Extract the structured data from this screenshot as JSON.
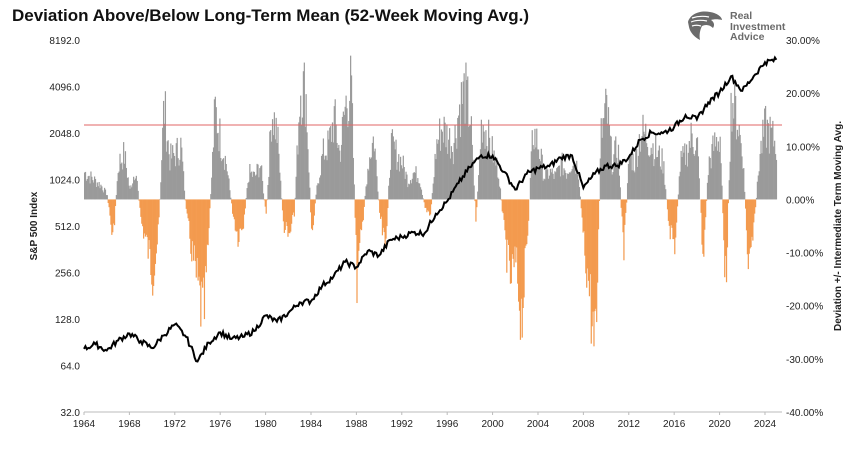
{
  "title": "Deviation Above/Below Long-Term Mean (52-Week Moving Avg.)",
  "brand": {
    "lines": [
      "Real",
      "Investment",
      "Advice"
    ],
    "logo_icon": "eagle-head-icon"
  },
  "chart_data": {
    "type": "line+bar",
    "title": "Deviation Above/Below Long-Term Mean (52-Week Moving Avg.)",
    "xlabel": "",
    "x_ticks": [
      "1964",
      "1968",
      "1972",
      "1976",
      "1980",
      "1984",
      "1988",
      "1992",
      "1996",
      "2000",
      "2004",
      "2008",
      "2012",
      "2016",
      "2020",
      "2024"
    ],
    "xlim": [
      1964,
      2025.5
    ],
    "left_axis": {
      "label": "S&P 500 Index",
      "scale": "log2",
      "ticks": [
        "32.0",
        "64.0",
        "128.0",
        "256.0",
        "512.0",
        "1024.0",
        "2048.0",
        "4096.0",
        "8192.0"
      ],
      "range": [
        32,
        8192
      ]
    },
    "right_axis": {
      "label": "Deviation +/- Intermediate Term Moving Avg.",
      "ticks": [
        "-40.00%",
        "-30.00%",
        "-20.00%",
        "-10.00%",
        "0.00%",
        "10.00%",
        "20.00%",
        "30.00%"
      ],
      "range": [
        -40,
        30
      ]
    },
    "reference_line": {
      "value": 14,
      "axis": "right",
      "color": "#e06666"
    },
    "colors": {
      "positive_bars": "#9a9a9a",
      "negative_bars": "#f39a4e",
      "price_line": "#000000"
    },
    "series": [
      {
        "axis": "left",
        "kind": "line",
        "points": [
          [
            1964,
            82
          ],
          [
            1965,
            88
          ],
          [
            1966,
            80
          ],
          [
            1967,
            93
          ],
          [
            1968,
            103
          ],
          [
            1969,
            92
          ],
          [
            1970,
            83
          ],
          [
            1971,
            100
          ],
          [
            1972,
            118
          ],
          [
            1973,
            98
          ],
          [
            1974,
            68
          ],
          [
            1975,
            90
          ],
          [
            1976,
            105
          ],
          [
            1977,
            95
          ],
          [
            1978,
            98
          ],
          [
            1979,
            107
          ],
          [
            1980,
            135
          ],
          [
            1981,
            123
          ],
          [
            1982,
            140
          ],
          [
            1983,
            164
          ],
          [
            1984,
            167
          ],
          [
            1985,
            211
          ],
          [
            1986,
            242
          ],
          [
            1987,
            300
          ],
          [
            1988,
            277
          ],
          [
            1989,
            353
          ],
          [
            1990,
            330
          ],
          [
            1991,
            417
          ],
          [
            1992,
            435
          ],
          [
            1993,
            466
          ],
          [
            1994,
            459
          ],
          [
            1995,
            615
          ],
          [
            1996,
            740
          ],
          [
            1997,
            970
          ],
          [
            1998,
            1229
          ],
          [
            1999,
            1469
          ],
          [
            2000,
            1460
          ],
          [
            2001,
            1148
          ],
          [
            2002,
            880
          ],
          [
            2003,
            1112
          ],
          [
            2004,
            1212
          ],
          [
            2005,
            1248
          ],
          [
            2006,
            1418
          ],
          [
            2007,
            1468
          ],
          [
            2008,
            903
          ],
          [
            2009,
            1115
          ],
          [
            2010,
            1258
          ],
          [
            2011,
            1258
          ],
          [
            2012,
            1426
          ],
          [
            2013,
            1848
          ],
          [
            2014,
            2059
          ],
          [
            2015,
            2044
          ],
          [
            2016,
            2239
          ],
          [
            2017,
            2674
          ],
          [
            2018,
            2507
          ],
          [
            2019,
            3231
          ],
          [
            2020,
            3756
          ],
          [
            2021,
            4766
          ],
          [
            2022,
            3840
          ],
          [
            2023,
            4770
          ],
          [
            2024,
            5880
          ],
          [
            2025,
            6100
          ]
        ]
      },
      {
        "axis": "right",
        "kind": "bar",
        "points": [
          [
            1964.0,
            6
          ],
          [
            1964.5,
            5
          ],
          [
            1965.0,
            4
          ],
          [
            1965.5,
            3
          ],
          [
            1966.0,
            1
          ],
          [
            1966.5,
            -9
          ],
          [
            1967.0,
            8
          ],
          [
            1967.5,
            10
          ],
          [
            1968.0,
            2
          ],
          [
            1968.5,
            7
          ],
          [
            1969.0,
            -5
          ],
          [
            1969.5,
            -10
          ],
          [
            1970.0,
            -16
          ],
          [
            1970.5,
            -8
          ],
          [
            1971.0,
            21
          ],
          [
            1971.5,
            9
          ],
          [
            1972.0,
            10
          ],
          [
            1972.5,
            12
          ],
          [
            1973.0,
            -4
          ],
          [
            1973.5,
            -12
          ],
          [
            1974.0,
            -20
          ],
          [
            1974.5,
            -27
          ],
          [
            1975.0,
            -5
          ],
          [
            1975.5,
            20
          ],
          [
            1976.0,
            13
          ],
          [
            1976.5,
            8
          ],
          [
            1977.0,
            -2
          ],
          [
            1977.5,
            -8
          ],
          [
            1978.0,
            -5
          ],
          [
            1978.5,
            6
          ],
          [
            1979.0,
            5
          ],
          [
            1979.5,
            8
          ],
          [
            1980.0,
            -4
          ],
          [
            1980.5,
            20
          ],
          [
            1981.0,
            14
          ],
          [
            1981.5,
            -5
          ],
          [
            1982.0,
            -9
          ],
          [
            1982.5,
            -3
          ],
          [
            1983.0,
            25
          ],
          [
            1983.5,
            24
          ],
          [
            1984.0,
            -8
          ],
          [
            1984.5,
            3
          ],
          [
            1985.0,
            10
          ],
          [
            1985.5,
            12
          ],
          [
            1986.0,
            18
          ],
          [
            1986.5,
            10
          ],
          [
            1987.0,
            21
          ],
          [
            1987.5,
            25
          ],
          [
            1988.0,
            -18
          ],
          [
            1988.5,
            -5
          ],
          [
            1989.0,
            8
          ],
          [
            1989.5,
            14
          ],
          [
            1990.0,
            -3
          ],
          [
            1990.5,
            -12
          ],
          [
            1991.0,
            12
          ],
          [
            1991.5,
            10
          ],
          [
            1992.0,
            8
          ],
          [
            1992.5,
            4
          ],
          [
            1993.0,
            6
          ],
          [
            1993.5,
            5
          ],
          [
            1994.0,
            -2
          ],
          [
            1994.5,
            -3
          ],
          [
            1995.0,
            12
          ],
          [
            1995.5,
            16
          ],
          [
            1996.0,
            14
          ],
          [
            1996.5,
            12
          ],
          [
            1997.0,
            20
          ],
          [
            1997.5,
            24
          ],
          [
            1998.0,
            18
          ],
          [
            1998.5,
            -5
          ],
          [
            1999.0,
            18
          ],
          [
            1999.5,
            14
          ],
          [
            2000.0,
            10
          ],
          [
            2000.5,
            6
          ],
          [
            2001.0,
            -8
          ],
          [
            2001.5,
            -18
          ],
          [
            2002.0,
            -14
          ],
          [
            2002.5,
            -26
          ],
          [
            2003.0,
            -10
          ],
          [
            2003.5,
            15
          ],
          [
            2004.0,
            12
          ],
          [
            2004.5,
            5
          ],
          [
            2005.0,
            6
          ],
          [
            2005.5,
            5
          ],
          [
            2006.0,
            8
          ],
          [
            2006.5,
            6
          ],
          [
            2007.0,
            9
          ],
          [
            2007.5,
            7
          ],
          [
            2008.0,
            -10
          ],
          [
            2008.5,
            -20
          ],
          [
            2009.0,
            -37
          ],
          [
            2009.5,
            14
          ],
          [
            2010.0,
            20
          ],
          [
            2010.5,
            8
          ],
          [
            2011.0,
            12
          ],
          [
            2011.5,
            -12
          ],
          [
            2012.0,
            10
          ],
          [
            2012.5,
            8
          ],
          [
            2013.0,
            15
          ],
          [
            2013.5,
            14
          ],
          [
            2014.0,
            12
          ],
          [
            2014.5,
            10
          ],
          [
            2015.0,
            8
          ],
          [
            2015.5,
            -6
          ],
          [
            2016.0,
            -10
          ],
          [
            2016.5,
            8
          ],
          [
            2017.0,
            10
          ],
          [
            2017.5,
            14
          ],
          [
            2018.0,
            12
          ],
          [
            2018.5,
            -13
          ],
          [
            2019.0,
            8
          ],
          [
            2019.5,
            12
          ],
          [
            2020.0,
            14
          ],
          [
            2020.5,
            -20
          ],
          [
            2021.0,
            23
          ],
          [
            2021.5,
            18
          ],
          [
            2022.0,
            10
          ],
          [
            2022.5,
            -16
          ],
          [
            2023.0,
            -6
          ],
          [
            2023.5,
            10
          ],
          [
            2024.0,
            16
          ],
          [
            2024.5,
            14
          ],
          [
            2025.0,
            12
          ]
        ]
      }
    ]
  }
}
